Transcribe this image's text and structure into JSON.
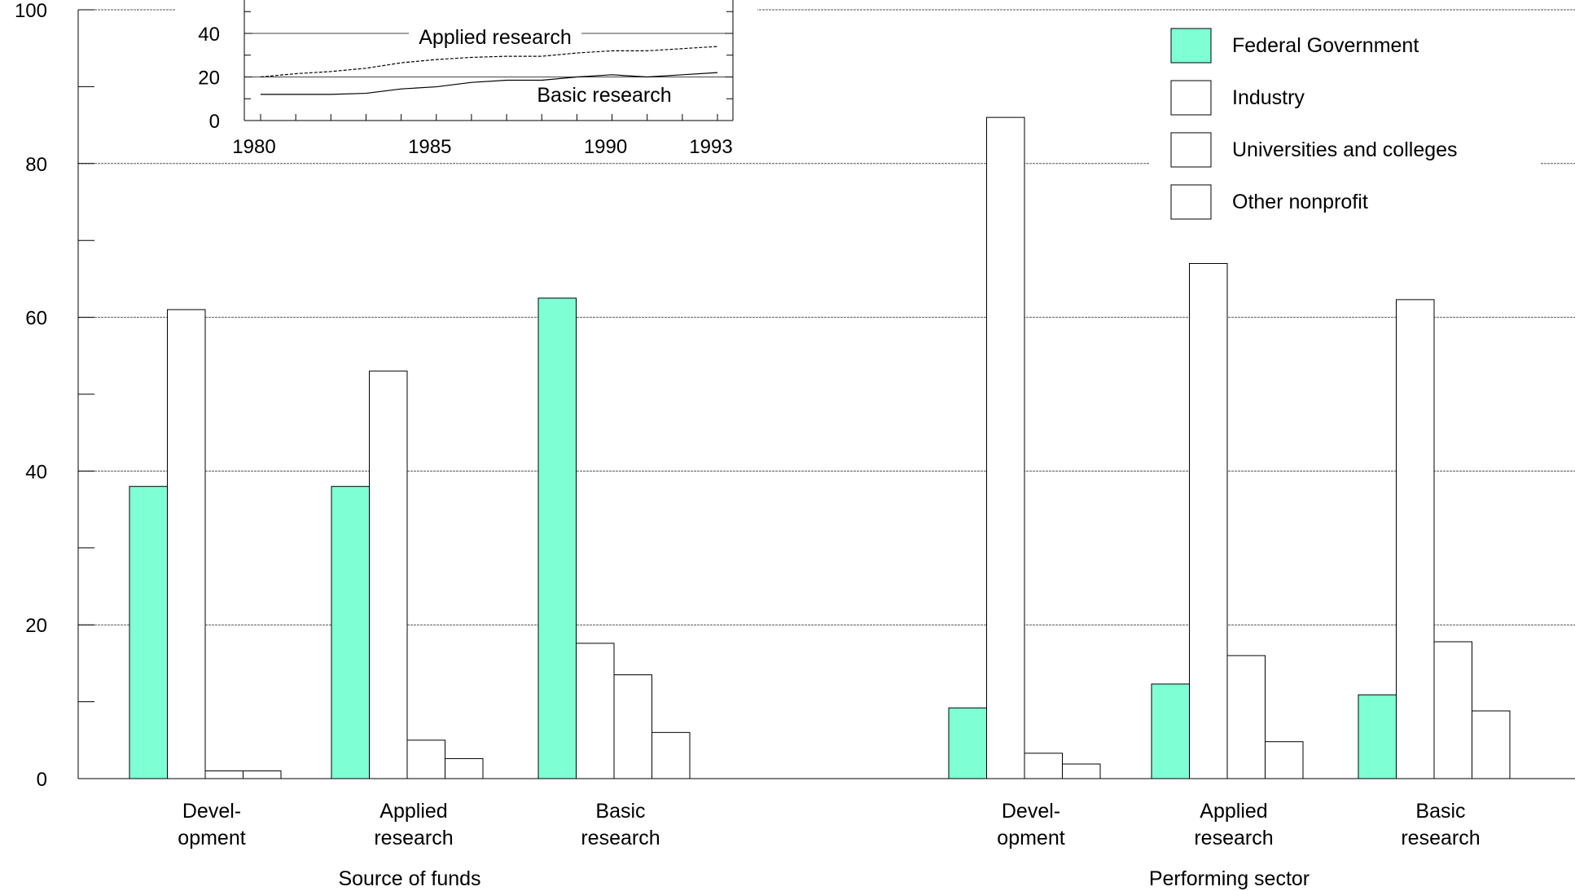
{
  "chart_data": [
    {
      "type": "bar",
      "groups": [
        {
          "label": "Source of funds",
          "categories": [
            "Devel-\nopment",
            "Applied\nresearch",
            "Basic\nresearch"
          ]
        },
        {
          "label": "Performing sector",
          "categories": [
            "Devel-\nopment",
            "Applied\nresearch",
            "Basic\nresearch"
          ]
        }
      ],
      "series": [
        {
          "name": "Federal Government",
          "color": "#7fffd4",
          "values": [
            38,
            38,
            62.5,
            9.2,
            12.3,
            10.9
          ]
        },
        {
          "name": "Industry",
          "color": "#ffffff",
          "values": [
            61,
            53,
            17.6,
            86,
            67,
            62.3
          ]
        },
        {
          "name": "Universities and colleges",
          "color": "#ffffff",
          "values": [
            1,
            5,
            13.5,
            3.3,
            16,
            17.8
          ]
        },
        {
          "name": "Other nonprofit",
          "color": "#ffffff",
          "values": [
            1,
            2.6,
            6,
            1.9,
            4.8,
            8.8
          ]
        }
      ],
      "ylim": [
        0,
        100
      ],
      "yticks": [
        0,
        20,
        40,
        60,
        80,
        100
      ],
      "grid": true,
      "legend": "top-right"
    },
    {
      "type": "line",
      "inset": true,
      "x": [
        1980,
        1981,
        1982,
        1983,
        1984,
        1985,
        1986,
        1987,
        1988,
        1989,
        1990,
        1991,
        1992,
        1993
      ],
      "xticks": [
        1980,
        1985,
        1990,
        1993
      ],
      "yticks": [
        0,
        20,
        40
      ],
      "ylim": [
        0,
        60
      ],
      "series": [
        {
          "name": "Applied research",
          "style": "dashed",
          "values": [
            20,
            21.5,
            22.5,
            24,
            26.5,
            28,
            29,
            29.5,
            29.5,
            31,
            32,
            32,
            33,
            34
          ]
        },
        {
          "name": "Basic research",
          "style": "solid",
          "values": [
            12,
            12,
            12,
            12.5,
            14.5,
            15.5,
            17.5,
            18.5,
            18.5,
            20,
            21,
            20,
            21,
            22
          ]
        }
      ]
    }
  ]
}
